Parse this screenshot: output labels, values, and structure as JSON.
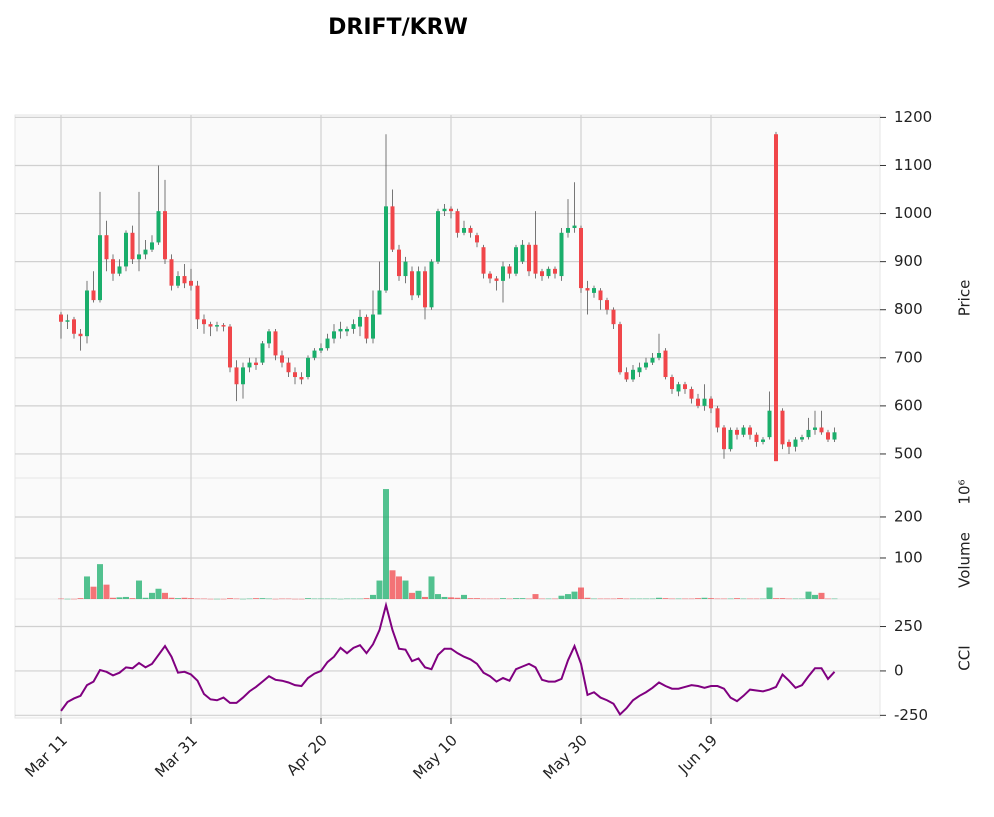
{
  "chart_data": {
    "type": "candlestick",
    "title": "DRIFT/KRW",
    "categories": [
      "Mar 11",
      null,
      null,
      null,
      null,
      null,
      null,
      null,
      null,
      null,
      null,
      null,
      null,
      null,
      null,
      null,
      null,
      null,
      null,
      null,
      "Mar 31",
      null,
      null,
      null,
      null,
      null,
      null,
      null,
      null,
      null,
      null,
      null,
      null,
      null,
      null,
      null,
      null,
      null,
      null,
      null,
      "Apr 20",
      null,
      null,
      null,
      null,
      null,
      null,
      null,
      null,
      null,
      null,
      null,
      null,
      null,
      null,
      null,
      null,
      null,
      null,
      null,
      "May 10",
      null,
      null,
      null,
      null,
      null,
      null,
      null,
      null,
      null,
      null,
      null,
      null,
      null,
      null,
      null,
      null,
      null,
      null,
      null,
      "May 30",
      null,
      null,
      null,
      null,
      null,
      null,
      null,
      null,
      null,
      null,
      null,
      null,
      null,
      null,
      null,
      null,
      null,
      null,
      null,
      "Jun 19",
      null,
      null,
      null,
      null,
      null,
      null,
      null,
      null,
      null,
      null,
      null,
      null,
      null,
      null,
      null,
      null,
      null,
      null,
      null
    ],
    "open": [
      790,
      775,
      780,
      750,
      745,
      840,
      820,
      955,
      905,
      875,
      890,
      960,
      905,
      915,
      925,
      940,
      1005,
      905,
      850,
      870,
      860,
      850,
      780,
      770,
      765,
      768,
      765,
      680,
      645,
      680,
      690,
      690,
      730,
      755,
      705,
      690,
      670,
      660,
      660,
      700,
      715,
      720,
      740,
      755,
      755,
      760,
      765,
      785,
      740,
      790,
      840,
      1015,
      925,
      870,
      880,
      830,
      880,
      805,
      900,
      1005,
      1010,
      1005,
      960,
      970,
      955,
      930,
      875,
      865,
      860,
      890,
      875,
      900,
      935,
      935,
      880,
      870,
      885,
      870,
      960,
      970,
      970,
      845,
      835,
      840,
      820,
      800,
      770,
      670,
      655,
      670,
      680,
      690,
      700,
      715,
      660,
      630,
      645,
      635,
      615,
      600,
      615,
      595,
      555,
      510,
      550,
      540,
      555,
      540,
      525,
      535,
      1165,
      590,
      525,
      515,
      530,
      535,
      550,
      555,
      545,
      530
    ],
    "high": [
      795,
      790,
      785,
      760,
      860,
      880,
      1045,
      985,
      915,
      905,
      965,
      975,
      1045,
      945,
      955,
      1100,
      1070,
      915,
      880,
      895,
      885,
      860,
      790,
      775,
      775,
      772,
      770,
      695,
      690,
      700,
      700,
      735,
      760,
      760,
      715,
      700,
      680,
      670,
      705,
      720,
      730,
      750,
      770,
      775,
      765,
      780,
      800,
      790,
      840,
      900,
      1165,
      1050,
      935,
      910,
      890,
      890,
      890,
      905,
      1010,
      1020,
      1015,
      1010,
      985,
      975,
      960,
      935,
      880,
      870,
      900,
      895,
      935,
      945,
      940,
      1005,
      885,
      890,
      890,
      970,
      1030,
      1065,
      975,
      860,
      850,
      845,
      825,
      805,
      775,
      680,
      685,
      690,
      700,
      710,
      750,
      720,
      665,
      650,
      650,
      640,
      625,
      645,
      620,
      600,
      560,
      555,
      555,
      560,
      560,
      545,
      535,
      630,
      1170,
      595,
      530,
      535,
      540,
      575,
      590,
      590,
      550,
      555
    ],
    "low": [
      740,
      760,
      740,
      715,
      730,
      815,
      815,
      880,
      860,
      870,
      880,
      895,
      880,
      905,
      920,
      935,
      895,
      840,
      845,
      845,
      840,
      760,
      750,
      745,
      755,
      755,
      670,
      610,
      615,
      670,
      675,
      685,
      720,
      695,
      680,
      660,
      645,
      645,
      655,
      695,
      710,
      715,
      730,
      740,
      745,
      750,
      745,
      730,
      730,
      790,
      835,
      920,
      860,
      855,
      820,
      825,
      780,
      800,
      895,
      995,
      990,
      950,
      955,
      950,
      930,
      865,
      855,
      840,
      815,
      865,
      870,
      895,
      870,
      865,
      860,
      865,
      865,
      860,
      950,
      960,
      835,
      790,
      825,
      800,
      790,
      760,
      665,
      650,
      650,
      660,
      675,
      685,
      695,
      655,
      625,
      620,
      625,
      605,
      595,
      590,
      585,
      545,
      490,
      505,
      530,
      535,
      530,
      515,
      520,
      530,
      485,
      510,
      500,
      505,
      525,
      530,
      540,
      540,
      525,
      525
    ],
    "close": [
      775,
      778,
      750,
      745,
      840,
      820,
      955,
      905,
      875,
      890,
      960,
      905,
      915,
      925,
      940,
      1005,
      905,
      850,
      870,
      855,
      850,
      780,
      770,
      765,
      768,
      765,
      680,
      645,
      680,
      690,
      685,
      730,
      755,
      705,
      690,
      670,
      660,
      655,
      700,
      715,
      720,
      740,
      755,
      760,
      760,
      770,
      785,
      740,
      790,
      840,
      1015,
      925,
      870,
      900,
      830,
      880,
      805,
      900,
      1005,
      1010,
      1005,
      960,
      970,
      960,
      940,
      875,
      865,
      860,
      890,
      875,
      930,
      935,
      880,
      875,
      870,
      885,
      875,
      960,
      970,
      975,
      845,
      840,
      845,
      820,
      800,
      770,
      670,
      655,
      675,
      680,
      690,
      700,
      710,
      660,
      635,
      645,
      635,
      615,
      600,
      615,
      595,
      555,
      510,
      550,
      540,
      555,
      540,
      525,
      530,
      590,
      485,
      520,
      515,
      530,
      535,
      550,
      555,
      545,
      530,
      545
    ],
    "ylabel": "Price",
    "ylim": [
      450,
      1205
    ],
    "yticks": [
      500,
      600,
      700,
      800,
      900,
      1000,
      1100,
      1200
    ],
    "up_color": "#1aae6b",
    "down_color": "#f0464a",
    "grid": true,
    "volume": {
      "ylabel": "Volume",
      "exponent": "10⁶",
      "values": [
        1,
        0.5,
        0.5,
        2,
        55,
        30,
        85,
        35,
        3,
        4,
        5,
        2,
        45,
        3,
        15,
        25,
        15,
        3,
        2,
        3,
        2,
        1,
        1,
        0.5,
        0.5,
        0.5,
        2,
        1,
        0.5,
        1,
        2,
        2,
        1,
        0.5,
        1,
        1,
        0.5,
        0.5,
        2,
        1,
        1,
        1,
        1,
        0.5,
        1,
        1,
        1,
        2,
        10,
        45,
        268,
        70,
        55,
        45,
        15,
        20,
        5,
        55,
        12,
        5,
        4,
        3,
        10,
        2,
        2,
        1,
        1,
        1,
        2,
        1,
        2,
        2,
        1,
        12,
        1,
        1,
        1,
        8,
        12,
        18,
        28,
        3,
        1,
        1,
        1,
        1,
        2,
        1,
        1,
        1,
        1,
        1,
        3,
        2,
        1,
        1,
        1,
        1,
        2,
        3,
        2,
        1,
        1,
        1,
        2,
        1,
        1,
        1,
        1,
        28,
        2,
        2,
        1,
        1,
        1,
        18,
        10,
        15,
        1,
        1
      ],
      "ylim": [
        0,
        295
      ],
      "yticks": [
        100,
        200
      ]
    },
    "indicator": {
      "ylabel": "CCI",
      "color": "#800080",
      "values": [
        -225,
        -175,
        -155,
        -140,
        -80,
        -60,
        5,
        -5,
        -25,
        -10,
        20,
        15,
        45,
        20,
        40,
        90,
        140,
        80,
        -10,
        -5,
        -20,
        -55,
        -130,
        -160,
        -165,
        -150,
        -180,
        -180,
        -150,
        -115,
        -90,
        -60,
        -30,
        -50,
        -55,
        -65,
        -80,
        -85,
        -40,
        -15,
        0,
        50,
        80,
        130,
        100,
        130,
        145,
        100,
        150,
        230,
        370,
        230,
        125,
        120,
        55,
        70,
        20,
        10,
        90,
        125,
        125,
        100,
        80,
        65,
        40,
        -10,
        -30,
        -60,
        -40,
        -55,
        10,
        25,
        40,
        20,
        -50,
        -60,
        -60,
        -45,
        60,
        140,
        40,
        -135,
        -120,
        -150,
        -165,
        -185,
        -245,
        -210,
        -165,
        -140,
        -120,
        -95,
        -65,
        -85,
        -100,
        -100,
        -90,
        -80,
        -85,
        -95,
        -85,
        -85,
        -100,
        -150,
        -170,
        -140,
        -105,
        -110,
        -115,
        -105,
        -90,
        -20,
        -55,
        -95,
        -80,
        -30,
        15,
        15,
        -45,
        -5
      ],
      "ylim": [
        -265,
        405
      ],
      "yticks": [
        -250,
        0,
        250
      ]
    }
  }
}
